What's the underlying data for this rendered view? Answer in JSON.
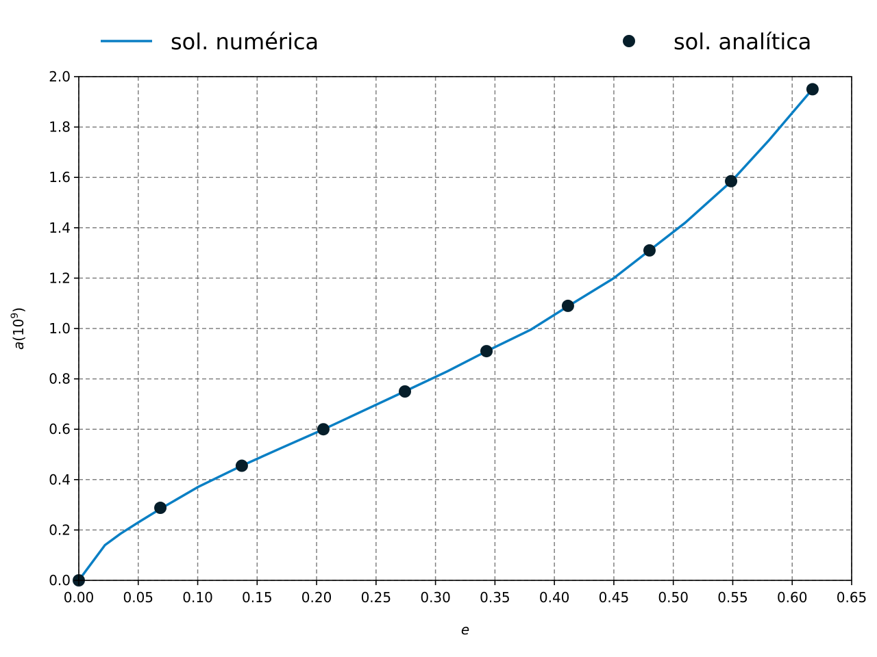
{
  "chart_data": {
    "type": "line",
    "xlabel": "e",
    "ylabel_italic": "a",
    "ylabel_rest": "(10",
    "ylabel_sup": "9",
    "ylabel_close": ")",
    "xlim": [
      0.0,
      0.65
    ],
    "ylim": [
      0.0,
      2.0
    ],
    "grid": true,
    "legend_placement": "top, outside plot area",
    "x_ticks": [
      "0.00",
      "0.05",
      "0.10",
      "0.15",
      "0.20",
      "0.25",
      "0.30",
      "0.35",
      "0.40",
      "0.45",
      "0.50",
      "0.55",
      "0.60",
      "0.65"
    ],
    "y_ticks": [
      "0.0",
      "0.2",
      "0.4",
      "0.6",
      "0.8",
      "1.0",
      "1.2",
      "1.4",
      "1.6",
      "1.8",
      "2.0"
    ],
    "series": [
      {
        "name": "sol. numérica",
        "kind": "line",
        "color": "#0a7fc4",
        "x": [
          0.0,
          0.022,
          0.035,
          0.05,
          0.069,
          0.1,
          0.137,
          0.17,
          0.206,
          0.24,
          0.274,
          0.31,
          0.343,
          0.38,
          0.412,
          0.45,
          0.48,
          0.51,
          0.549,
          0.58,
          0.617
        ],
        "y": [
          0.0,
          0.14,
          0.185,
          0.23,
          0.285,
          0.37,
          0.455,
          0.525,
          0.6,
          0.675,
          0.75,
          0.83,
          0.91,
          0.995,
          1.09,
          1.2,
          1.31,
          1.42,
          1.585,
          1.745,
          1.95
        ]
      },
      {
        "name": "sol. analítica",
        "kind": "scatter",
        "color": "#061e2a",
        "x": [
          0.0,
          0.0686,
          0.1371,
          0.2057,
          0.2743,
          0.3429,
          0.4114,
          0.48,
          0.5486,
          0.6171
        ],
        "y": [
          0.0,
          0.288,
          0.455,
          0.6,
          0.75,
          0.91,
          1.09,
          1.31,
          1.585,
          1.95
        ]
      }
    ]
  }
}
